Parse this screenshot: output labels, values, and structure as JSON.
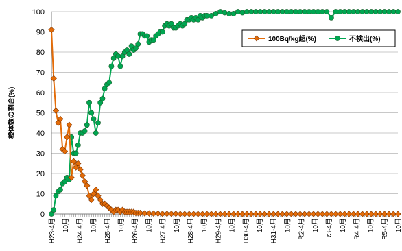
{
  "chart_data": {
    "type": "line",
    "ylabel": "検体数の割合(%)",
    "ylim": [
      0,
      100
    ],
    "yticks": [
      0,
      10,
      20,
      30,
      40,
      50,
      60,
      70,
      80,
      90,
      100
    ],
    "grid": true,
    "legend_position": "top-right",
    "xtick_labels": [
      "H23-4月",
      "10月",
      "H24-4月",
      "10月",
      "H25-4月",
      "10月",
      "H26-4月",
      "10月",
      "H27-4月",
      "10月",
      "H28-4月",
      "10月",
      "H29-4月",
      "10月",
      "H30-4月",
      "10月",
      "H31-4月",
      "10月",
      "R2-4月",
      "10月",
      "R3-4月",
      "10月",
      "R4-4月",
      "10月",
      "R5-4月",
      "10月"
    ],
    "x_range": [
      0,
      156
    ],
    "series": [
      {
        "name": "100Bq/kg超(%)",
        "color": "#E36C09",
        "marker": "diamond",
        "x": [
          0,
          1,
          2,
          3,
          4,
          5,
          6,
          7,
          8,
          9,
          10,
          11,
          12,
          13,
          14,
          15,
          16,
          17,
          18,
          19,
          20,
          21,
          22,
          23,
          24,
          25,
          26,
          27,
          28,
          29,
          30,
          31,
          32,
          33,
          34,
          35,
          36,
          37,
          38,
          39,
          40,
          42,
          44,
          46,
          48,
          50,
          52,
          54,
          56,
          58,
          60,
          62,
          64,
          66,
          68,
          70,
          72,
          74,
          76,
          78,
          80,
          82,
          84,
          86,
          88,
          90,
          92,
          94,
          96,
          98,
          100,
          102,
          104,
          106,
          108,
          110,
          112,
          114,
          116,
          118,
          120,
          122,
          124,
          126,
          128,
          130,
          132,
          134,
          136,
          138,
          140,
          142,
          144,
          146,
          148,
          150,
          152,
          154,
          156
        ],
        "y": [
          91,
          67,
          51,
          45,
          47,
          32,
          31,
          38,
          44,
          18,
          26,
          23,
          25,
          22,
          19,
          16,
          14,
          9,
          7,
          10,
          12,
          9,
          7,
          5,
          5,
          4,
          3,
          2,
          1,
          2,
          2,
          1,
          2,
          1,
          1,
          1,
          1,
          1,
          0.5,
          0.5,
          0.5,
          0.3,
          0.3,
          0.2,
          0.2,
          0.1,
          0.1,
          0.1,
          0.1,
          0,
          0,
          0,
          0,
          0,
          0,
          0,
          0,
          0,
          0,
          0,
          0,
          0,
          0,
          0,
          0,
          0,
          0,
          0,
          0,
          0,
          0,
          0,
          0,
          0,
          0,
          0,
          0,
          0,
          0,
          0,
          0,
          0,
          0,
          0,
          0,
          0,
          0,
          0,
          0,
          0,
          0,
          0,
          0,
          0,
          0,
          0,
          0,
          0,
          0
        ]
      },
      {
        "name": "不検出(%)",
        "color": "#00A651",
        "marker": "circle",
        "x": [
          0,
          1,
          2,
          3,
          4,
          5,
          6,
          7,
          8,
          9,
          10,
          11,
          12,
          13,
          14,
          15,
          16,
          17,
          18,
          19,
          20,
          21,
          22,
          23,
          24,
          25,
          26,
          27,
          28,
          29,
          30,
          31,
          32,
          33,
          34,
          35,
          36,
          37,
          38,
          39,
          40,
          41,
          42,
          43,
          44,
          45,
          46,
          47,
          48,
          49,
          50,
          51,
          52,
          53,
          54,
          55,
          56,
          57,
          58,
          59,
          60,
          61,
          62,
          63,
          64,
          65,
          66,
          67,
          68,
          69,
          70,
          72,
          74,
          76,
          78,
          80,
          82,
          84,
          86,
          88,
          90,
          92,
          94,
          96,
          98,
          100,
          102,
          104,
          106,
          108,
          110,
          112,
          114,
          116,
          118,
          120,
          122,
          124,
          126,
          128,
          130,
          132,
          134,
          136,
          138,
          140,
          142,
          144,
          146,
          148,
          150,
          152,
          154,
          156
        ],
        "y": [
          0,
          2,
          9,
          11,
          12,
          15,
          16,
          18,
          17,
          38,
          30,
          30,
          34,
          40,
          40,
          41,
          44,
          55,
          50,
          47,
          40,
          45,
          55,
          57,
          62,
          64,
          65,
          73,
          77,
          79,
          78,
          73,
          78,
          80,
          81,
          79,
          83,
          81,
          82,
          84,
          89,
          89,
          88,
          88,
          85,
          86,
          86,
          88,
          89,
          90,
          90,
          93,
          94,
          93,
          94,
          92,
          92,
          93,
          94,
          93,
          94,
          96,
          96,
          97,
          96,
          97,
          96,
          98,
          97,
          98,
          98,
          98,
          99,
          100,
          99.5,
          99,
          99,
          100,
          99.5,
          100,
          100,
          100,
          100,
          100,
          100,
          100,
          100,
          100,
          100,
          100,
          100,
          100,
          100,
          100,
          100,
          100,
          100,
          100,
          97,
          100,
          100,
          100,
          100,
          100,
          100,
          100,
          100,
          100,
          100,
          100,
          100,
          100,
          100,
          100
        ]
      }
    ]
  }
}
